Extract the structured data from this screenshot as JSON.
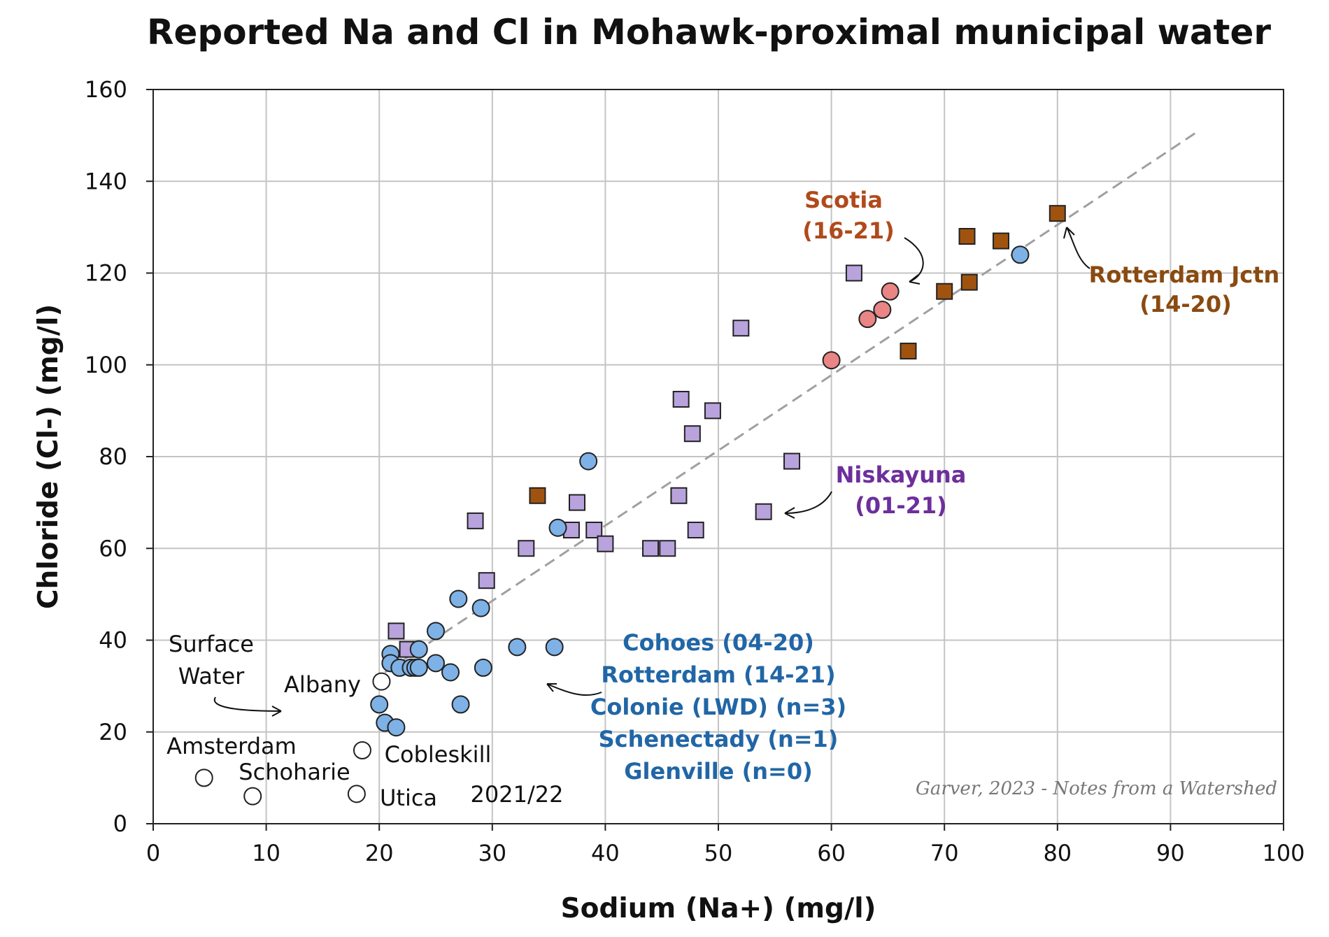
{
  "chart_data": {
    "type": "scatter",
    "title": "Reported Na and Cl in Mohawk-proximal municipal water",
    "xlabel": "Sodium (Na+) (mg/l)",
    "ylabel": "Chloride (Cl-) (mg/l)",
    "xlim": [
      0,
      100
    ],
    "ylim": [
      0,
      160
    ],
    "xticks": [
      "0",
      "10",
      "20",
      "30",
      "40",
      "50",
      "60",
      "70",
      "80",
      "90",
      "100"
    ],
    "yticks": [
      "0",
      "20",
      "40",
      "60",
      "80",
      "100",
      "120",
      "140",
      "160"
    ],
    "grid": true,
    "trendline": {
      "style": "dashed",
      "color": "#a0a0a0",
      "x": [
        20.5,
        92.5
      ],
      "y": [
        33,
        151
      ]
    },
    "series": [
      {
        "marker": "square",
        "color": "#b9a3dd",
        "values": [
          [
            21.5,
            42
          ],
          [
            22.5,
            38
          ],
          [
            28.5,
            66
          ],
          [
            29.5,
            53
          ],
          [
            33,
            60
          ],
          [
            37.5,
            70
          ],
          [
            37,
            64
          ],
          [
            39,
            64
          ],
          [
            40,
            61
          ],
          [
            44,
            60
          ],
          [
            45.5,
            60
          ],
          [
            46.5,
            71.5
          ],
          [
            46.7,
            92.5
          ],
          [
            47.7,
            85
          ],
          [
            48,
            64
          ],
          [
            49.5,
            90
          ],
          [
            52,
            108
          ],
          [
            54,
            68
          ],
          [
            56.5,
            79
          ],
          [
            62,
            120
          ]
        ]
      },
      {
        "marker": "square",
        "color": "#a0530f",
        "values": [
          [
            34,
            71.5
          ],
          [
            66.8,
            103
          ],
          [
            70,
            116
          ],
          [
            72,
            128
          ],
          [
            72.2,
            118
          ],
          [
            75,
            127
          ],
          [
            80,
            133
          ]
        ]
      },
      {
        "marker": "circle",
        "color": "#e98585",
        "values": [
          [
            60,
            101
          ],
          [
            63.2,
            110
          ],
          [
            64.5,
            112
          ],
          [
            65.2,
            116
          ]
        ]
      },
      {
        "marker": "circle",
        "color": "#7eb1e6",
        "values": [
          [
            20,
            26
          ],
          [
            20.5,
            22
          ],
          [
            21,
            37
          ],
          [
            21,
            35
          ],
          [
            21.5,
            21
          ],
          [
            21.8,
            34
          ],
          [
            22.8,
            34
          ],
          [
            23.2,
            34
          ],
          [
            23.5,
            34
          ],
          [
            23.5,
            38
          ],
          [
            25,
            42
          ],
          [
            25,
            35
          ],
          [
            26.3,
            33
          ],
          [
            27,
            49
          ],
          [
            27.2,
            26
          ],
          [
            29,
            47
          ],
          [
            29.2,
            34
          ],
          [
            32.2,
            38.5
          ],
          [
            35.5,
            38.5
          ],
          [
            35.8,
            64.5
          ],
          [
            38.5,
            79
          ],
          [
            76.7,
            124
          ]
        ]
      },
      {
        "marker": "circle",
        "color": "#ffffff",
        "values": [
          [
            4.5,
            10
          ],
          [
            8.8,
            6
          ],
          [
            18,
            6.5
          ],
          [
            18.5,
            16
          ],
          [
            20.2,
            31
          ]
        ]
      }
    ],
    "annotations": [
      {
        "text": "Scotia",
        "color": "#b04a1c"
      },
      {
        "text": "(16-21)",
        "color": "#b04a1c"
      },
      {
        "text": "Rotterdam Jctn",
        "color": "#8a4a10"
      },
      {
        "text": "(14-20)",
        "color": "#8a4a10"
      },
      {
        "text": "Niskayuna",
        "color": "#6d2f9c"
      },
      {
        "text": "(01-21)",
        "color": "#6d2f9c"
      },
      {
        "text": "Cohoes (04-20)",
        "color": "#2166a6"
      },
      {
        "text": "Rotterdam (14-21)",
        "color": "#2166a6"
      },
      {
        "text": "Colonie (LWD) (n=3)",
        "color": "#2166a6"
      },
      {
        "text": "Schenectady (n=1)",
        "color": "#2166a6"
      },
      {
        "text": "Glenville (n=0)",
        "color": "#2166a6"
      },
      {
        "text": "Surface",
        "color": "#111111"
      },
      {
        "text": "Water",
        "color": "#111111"
      },
      {
        "text": "Albany",
        "color": "#111111"
      },
      {
        "text": "Amsterdam",
        "color": "#111111"
      },
      {
        "text": "Schoharie",
        "color": "#111111"
      },
      {
        "text": "Cobleskill",
        "color": "#111111"
      },
      {
        "text": "Utica",
        "color": "#111111"
      },
      {
        "text": "2021/22",
        "color": "#111111"
      }
    ],
    "credit": "Garver, 2023 - Notes from a Watershed"
  }
}
